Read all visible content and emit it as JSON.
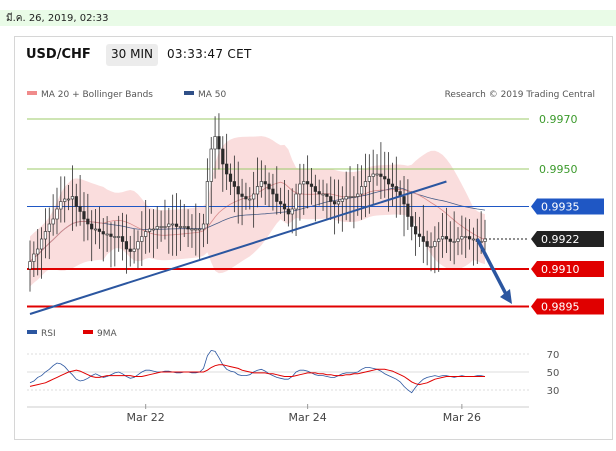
{
  "timestamp": "มี.ค. 26, 2019, 02:33",
  "header": {
    "pair": "USD/CHF",
    "timeframe": "30 MIN",
    "time": "03:33:47 CET"
  },
  "legend": {
    "bollinger": "MA 20 + Bollinger Bands",
    "ma50": "MA 50",
    "credit": "Research © 2019 Trading Central"
  },
  "colors": {
    "support": "#e00000",
    "resistance": "#9ccb6a",
    "pivot": "#1f57c4",
    "current": "#222222",
    "candle": "#2b2b2b",
    "bollinger_fill": "#f7c7c7",
    "ma20": "#d98a8a",
    "ma50": "#4a5f8a",
    "trendline": "#2b56a0",
    "arrow": "#2b56a0",
    "rsi": "#2b56a0",
    "rsi_ma": "#e00000",
    "grid": "#dddddd"
  },
  "chart_data": [
    {
      "type": "candlestick",
      "title": "USD/CHF",
      "timeframe": "30 MIN",
      "ylim": [
        0.9886,
        0.9978
      ],
      "x_ticks": [
        "Mar 22",
        "Mar 24",
        "Mar 26"
      ],
      "levels": [
        {
          "label": "0.9970",
          "value": 0.997,
          "kind": "resistance"
        },
        {
          "label": "0.9950",
          "value": 0.995,
          "kind": "resistance"
        },
        {
          "label": "0.9935",
          "value": 0.9935,
          "kind": "pivot"
        },
        {
          "label": "0.9922",
          "value": 0.9922,
          "kind": "current"
        },
        {
          "label": "0.9910",
          "value": 0.991,
          "kind": "support"
        },
        {
          "label": "0.9895",
          "value": 0.9895,
          "kind": "support"
        }
      ],
      "series": [
        {
          "name": "MA 20 + Bollinger Bands",
          "kind": "bands"
        },
        {
          "name": "MA 50",
          "kind": "line"
        }
      ],
      "close": [
        0.9913,
        0.9916,
        0.9918,
        0.9922,
        0.9925,
        0.9928,
        0.993,
        0.9934,
        0.9937,
        0.9938,
        0.9938,
        0.9939,
        0.9935,
        0.9933,
        0.993,
        0.9928,
        0.9926,
        0.9926,
        0.9925,
        0.9924,
        0.9924,
        0.9923,
        0.9923,
        0.9923,
        0.9921,
        0.9918,
        0.9917,
        0.9918,
        0.9921,
        0.9923,
        0.9925,
        0.9926,
        0.9926,
        0.9927,
        0.9927,
        0.9927,
        0.9928,
        0.9928,
        0.9927,
        0.9927,
        0.9927,
        0.9926,
        0.9926,
        0.9926,
        0.9926,
        0.9928,
        0.9945,
        0.9958,
        0.9963,
        0.9958,
        0.9952,
        0.9948,
        0.9945,
        0.9943,
        0.994,
        0.9939,
        0.9938,
        0.9938,
        0.994,
        0.9943,
        0.9945,
        0.9944,
        0.9942,
        0.994,
        0.9937,
        0.9936,
        0.9934,
        0.9932,
        0.9934,
        0.994,
        0.9944,
        0.9945,
        0.9944,
        0.9943,
        0.9941,
        0.994,
        0.994,
        0.9939,
        0.9937,
        0.9936,
        0.9937,
        0.9938,
        0.9939,
        0.9939,
        0.9939,
        0.994,
        0.9943,
        0.9945,
        0.9947,
        0.9948,
        0.9948,
        0.9947,
        0.9946,
        0.9944,
        0.9943,
        0.9941,
        0.9939,
        0.9936,
        0.9931,
        0.9927,
        0.9924,
        0.9923,
        0.9921,
        0.9919,
        0.9919,
        0.9921,
        0.9922,
        0.9923,
        0.9922,
        0.9921,
        0.9921,
        0.9922,
        0.9923,
        0.9923,
        0.9922,
        0.9922,
        0.9921,
        0.9921,
        0.9922
      ],
      "trendline": {
        "from": {
          "index": 0,
          "value": 0.9892
        },
        "to": {
          "index": 108,
          "value": 0.9945
        }
      },
      "forecast_arrow": {
        "from": {
          "index": 116,
          "value": 0.9922
        },
        "to": {
          "index": 125,
          "value": 0.9896
        }
      }
    },
    {
      "type": "line",
      "title": "RSI",
      "ylim": [
        20,
        80
      ],
      "y_ticks": [
        70,
        50,
        30
      ],
      "series": [
        {
          "name": "RSI",
          "values": [
            38,
            40,
            44,
            46,
            50,
            53,
            57,
            60,
            59,
            56,
            51,
            47,
            42,
            40,
            41,
            43,
            46,
            48,
            46,
            44,
            45,
            47,
            49,
            50,
            48,
            45,
            43,
            44,
            47,
            50,
            52,
            52,
            51,
            50,
            50,
            51,
            51,
            50,
            49,
            49,
            50,
            50,
            49,
            49,
            50,
            54,
            68,
            74,
            73,
            66,
            58,
            53,
            51,
            50,
            47,
            46,
            46,
            47,
            50,
            52,
            53,
            51,
            48,
            46,
            44,
            43,
            42,
            42,
            45,
            50,
            52,
            52,
            51,
            49,
            47,
            46,
            46,
            45,
            44,
            44,
            46,
            48,
            49,
            49,
            49,
            50,
            53,
            55,
            55,
            54,
            53,
            51,
            48,
            46,
            44,
            42,
            39,
            34,
            30,
            27,
            33,
            38,
            42,
            44,
            45,
            46,
            45,
            46,
            46,
            45,
            44,
            45,
            46,
            45,
            45,
            45,
            46,
            46,
            45
          ]
        },
        {
          "name": "9MA",
          "values": [
            34,
            35,
            36,
            37,
            38,
            40,
            42,
            44,
            46,
            48,
            50,
            51,
            52,
            51,
            49,
            47,
            45,
            44,
            44,
            45,
            46,
            46,
            46,
            46,
            46,
            46,
            46,
            45,
            45,
            45,
            46,
            47,
            48,
            49,
            50,
            50,
            50,
            50,
            50,
            50,
            50,
            50,
            50,
            50,
            50,
            50,
            52,
            55,
            57,
            58,
            58,
            57,
            56,
            55,
            54,
            52,
            51,
            50,
            49,
            49,
            49,
            49,
            48,
            48,
            47,
            46,
            45,
            45,
            45,
            46,
            47,
            48,
            49,
            49,
            49,
            48,
            48,
            47,
            47,
            46,
            46,
            46,
            47,
            47,
            48,
            48,
            49,
            50,
            51,
            52,
            53,
            53,
            53,
            52,
            51,
            49,
            47,
            45,
            42,
            39,
            37,
            36,
            37,
            38,
            40,
            42,
            43,
            44,
            45,
            45,
            45,
            45,
            45,
            45,
            45,
            45,
            45,
            45,
            45
          ]
        }
      ]
    }
  ]
}
